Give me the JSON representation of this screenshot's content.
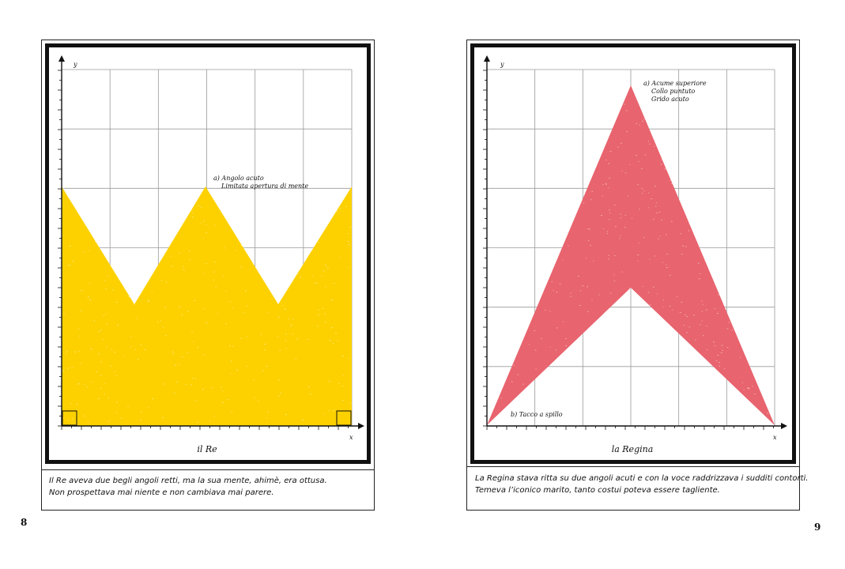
{
  "left_page": {
    "figure": {
      "axis_y": "y",
      "axis_x": "x",
      "annotation_a_1": "a) Angolo acuto",
      "annotation_a_2": "Limitata apertura di mente",
      "title": "il Re",
      "fill_color": "#FDD100"
    },
    "caption": {
      "line1": "Il Re aveva due begli angoli retti, ma la sua mente, ahimè, era ottusa.",
      "line2": "Non prospettava mai niente e non cambiava mai parere."
    },
    "page_number": "8"
  },
  "right_page": {
    "figure": {
      "axis_y": "y",
      "axis_x": "x",
      "annotation_a_1": "a) Acume superiore",
      "annotation_a_2": "Collo puntuto",
      "annotation_a_3": "Grido acuto",
      "annotation_b": "b) Tacco a spillo",
      "title": "la Regina",
      "fill_color": "#E8646E"
    },
    "caption": {
      "line1": "La Regina stava ritta su due angoli acuti e con la voce raddrizzava i sudditi contorti.",
      "line2": "Temeva l’iconico marito, tanto costui poteva essere tagliente."
    },
    "page_number": "9"
  }
}
